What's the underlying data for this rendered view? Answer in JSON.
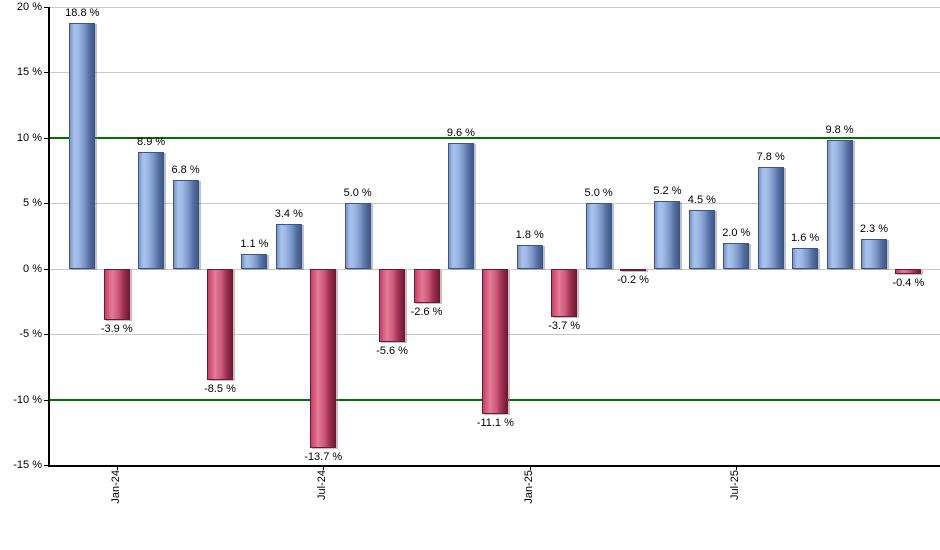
{
  "chart_data": {
    "type": "bar",
    "title": "",
    "xlabel": "",
    "ylabel": "",
    "ylim": [
      -15,
      20
    ],
    "grid": true,
    "legend": false,
    "bars": [
      {
        "value": 18.8,
        "label": "18.8 %",
        "color": "blue"
      },
      {
        "value": -3.9,
        "label": "-3.9 %",
        "color": "red"
      },
      {
        "value": 8.9,
        "label": "8.9 %",
        "color": "blue"
      },
      {
        "value": 6.8,
        "label": "6.8 %",
        "color": "blue"
      },
      {
        "value": -8.5,
        "label": "-8.5 %",
        "color": "red"
      },
      {
        "value": 1.1,
        "label": "1.1 %",
        "color": "blue"
      },
      {
        "value": 3.4,
        "label": "3.4 %",
        "color": "blue"
      },
      {
        "value": -13.7,
        "label": "-13.7 %",
        "color": "red"
      },
      {
        "value": 5.0,
        "label": "5.0 %",
        "color": "blue"
      },
      {
        "value": -5.6,
        "label": "-5.6 %",
        "color": "red"
      },
      {
        "value": -2.6,
        "label": "-2.6 %",
        "color": "red"
      },
      {
        "value": 9.6,
        "label": "9.6 %",
        "color": "blue"
      },
      {
        "value": -11.1,
        "label": "-11.1 %",
        "color": "red"
      },
      {
        "value": 1.8,
        "label": "1.8 %",
        "color": "blue"
      },
      {
        "value": -3.7,
        "label": "-3.7 %",
        "color": "red"
      },
      {
        "value": 5.0,
        "label": "5.0 %",
        "color": "blue"
      },
      {
        "value": -0.2,
        "label": "-0.2 %",
        "color": "red"
      },
      {
        "value": 5.2,
        "label": "5.2 %",
        "color": "blue"
      },
      {
        "value": 4.5,
        "label": "4.5 %",
        "color": "blue"
      },
      {
        "value": 2.0,
        "label": "2.0 %",
        "color": "blue"
      },
      {
        "value": 7.8,
        "label": "7.8 %",
        "color": "blue"
      },
      {
        "value": 1.6,
        "label": "1.6 %",
        "color": "blue"
      },
      {
        "value": 9.8,
        "label": "9.8 %",
        "color": "blue"
      },
      {
        "value": 2.3,
        "label": "2.3 %",
        "color": "blue"
      },
      {
        "value": -0.4,
        "label": "-0.4 %",
        "color": "red"
      }
    ],
    "x_ticks": [
      {
        "label": "Jan-24",
        "bar_index": 1
      },
      {
        "label": "Jul-24",
        "bar_index": 7
      },
      {
        "label": "Jan-25",
        "bar_index": 13
      },
      {
        "label": "Jul-25",
        "bar_index": 19
      }
    ],
    "y_ticks": [
      {
        "label": "20 %",
        "value": 20,
        "line": "gray"
      },
      {
        "label": "15 %",
        "value": 15,
        "line": "gray"
      },
      {
        "label": "10 %",
        "value": 10,
        "line": "green"
      },
      {
        "label": "5 %",
        "value": 5,
        "line": "gray"
      },
      {
        "label": "0 %",
        "value": 0,
        "line": "gray"
      },
      {
        "label": "-5 %",
        "value": -5,
        "line": "gray"
      },
      {
        "label": "-10 %",
        "value": -10,
        "line": "green"
      },
      {
        "label": "-15 %",
        "value": -15,
        "line": "axis"
      }
    ],
    "colors": {
      "positive_bar": "#7b97c9",
      "negative_bar": "#cf3c64",
      "gridline_gray": "#c9c9c9",
      "gridline_green": "#027102",
      "axis": "#000000",
      "background": "#ffffff",
      "label_text": "#000000"
    }
  }
}
